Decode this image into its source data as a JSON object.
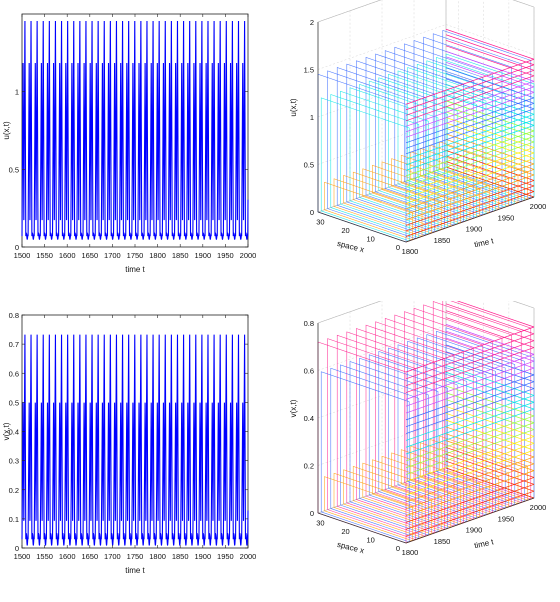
{
  "chart_data": [
    {
      "type": "line",
      "id": "u-time-series",
      "xlabel": "time t",
      "ylabel": "u(x,t)",
      "xlim": [
        1500,
        2000
      ],
      "ylim": [
        0,
        1.5
      ],
      "xticks": [
        "1500",
        "1550",
        "1600",
        "1650",
        "1700",
        "1750",
        "1800",
        "1850",
        "1900",
        "1950",
        "2000"
      ],
      "yticks": [
        "0",
        "0.5",
        "1"
      ],
      "series": [
        {
          "color": "#0000ff",
          "period": 13.5,
          "min": 0.07,
          "mid_peak": 1.21,
          "max": 1.47,
          "trough_mid": 0.14
        }
      ]
    },
    {
      "type": "surface",
      "id": "u-space-time",
      "xlabel": "time t",
      "ylabel": "space x",
      "zlabel": "u(x,t)",
      "xlim": [
        1800,
        2000
      ],
      "ylim": [
        0,
        35
      ],
      "zlim": [
        0,
        2
      ],
      "xticks": [
        "1800",
        "1850",
        "1900",
        "1950",
        "2000"
      ],
      "yticks": [
        "0",
        "10",
        "20",
        "30"
      ],
      "zticks": [
        "0",
        "0.5",
        "1",
        "1.5",
        "2"
      ],
      "colormap": [
        "#ff2a00",
        "#ff9900",
        "#ffee00",
        "#99ff33",
        "#00e5e5",
        "#3366ff",
        "#cc44ff",
        "#ff1a8c"
      ]
    },
    {
      "type": "line",
      "id": "v-time-series",
      "xlabel": "time t",
      "ylabel": "v(x,t)",
      "xlim": [
        1500,
        2000
      ],
      "ylim": [
        0,
        0.8
      ],
      "xticks": [
        "1500",
        "1550",
        "1600",
        "1650",
        "1700",
        "1750",
        "1800",
        "1850",
        "1900",
        "1950",
        "2000"
      ],
      "yticks": [
        "0",
        "0.1",
        "0.2",
        "0.3",
        "0.4",
        "0.5",
        "0.6",
        "0.7",
        "0.8"
      ],
      "series": [
        {
          "color": "#0000ff",
          "period": 13.5,
          "min": 0.03,
          "mid_peak": 0.51,
          "max": 0.74,
          "trough_mid": 0.08
        }
      ]
    },
    {
      "type": "surface",
      "id": "v-space-time",
      "xlabel": "time t",
      "ylabel": "space x",
      "zlabel": "v(x,t)",
      "xlim": [
        1800,
        2000
      ],
      "ylim": [
        0,
        35
      ],
      "zlim": [
        0,
        0.8
      ],
      "xticks": [
        "1800",
        "1850",
        "1900",
        "1950",
        "2000"
      ],
      "yticks": [
        "0",
        "10",
        "20",
        "30"
      ],
      "zticks": [
        "0",
        "0.2",
        "0.4",
        "0.6",
        "0.8"
      ],
      "colormap": [
        "#ff2a00",
        "#ff9900",
        "#ffee00",
        "#99ff33",
        "#00e5e5",
        "#3366ff",
        "#cc44ff",
        "#ff1a8c"
      ]
    }
  ]
}
